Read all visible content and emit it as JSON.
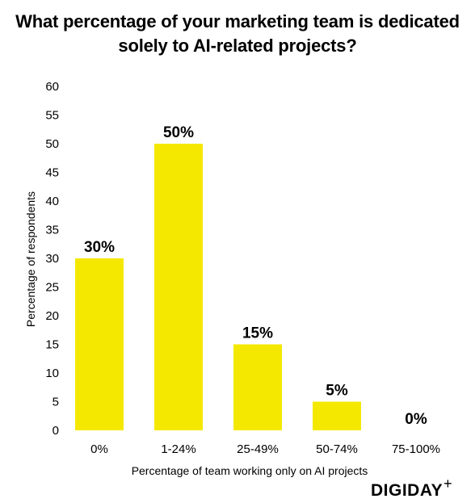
{
  "chart_data": {
    "type": "bar",
    "title": "What percentage of your marketing team is dedicated solely to AI-related projects?",
    "categories": [
      "0%",
      "1-24%",
      "25-49%",
      "50-74%",
      "75-100%"
    ],
    "values": [
      30,
      50,
      15,
      5,
      0
    ],
    "data_labels": [
      "30%",
      "50%",
      "15%",
      "5%",
      "0%"
    ],
    "xlabel": "Percentage of team working only on AI projects",
    "ylabel": "Percentage of respondents",
    "ylim": [
      0,
      60
    ],
    "yticks": [
      0,
      5,
      10,
      15,
      20,
      25,
      30,
      35,
      40,
      45,
      50,
      55,
      60
    ],
    "grid": false,
    "bar_color": "#f5e800"
  },
  "branding": {
    "logo_text": "DIGIDAY",
    "logo_mark": "+"
  }
}
